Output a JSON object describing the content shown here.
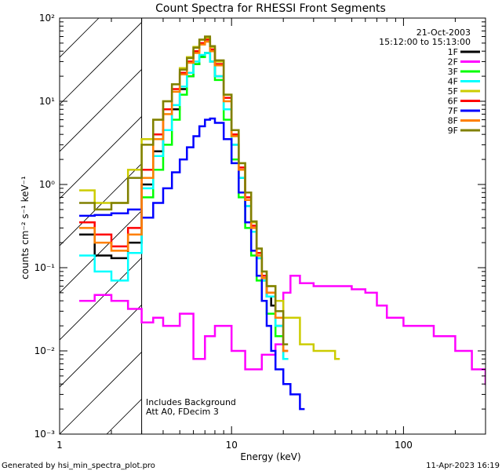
{
  "chart_data": {
    "type": "line",
    "title": "Count Spectra for RHESSI Front Segments",
    "xlabel": "Energy (keV)",
    "ylabel": "counts cm⁻² s⁻¹ keV⁻¹",
    "xscale": "log",
    "yscale": "log",
    "xlim": [
      1,
      300
    ],
    "ylim": [
      0.001,
      100
    ],
    "x_tick_labels": [
      "1",
      "10",
      "100"
    ],
    "y_tick_labels": [
      "10⁻³",
      "10⁻²",
      "10⁻¹",
      "10⁰",
      "10¹",
      "10²"
    ],
    "date": "21-Oct-2003",
    "time_range": "15:12:00 to 15:13:00",
    "excluded_region_below_keV": 3,
    "annotations": [
      "Includes Background",
      "Att A0, FDecim 3"
    ],
    "footer_left": "Generated by hsi_min_spectra_plot.pro",
    "footer_right": "11-Apr-2023 16:19",
    "series": [
      {
        "name": "1F",
        "color": "#000000",
        "x": [
          1.3,
          1.6,
          2.0,
          2.5,
          3.0,
          3.5,
          4.0,
          4.5,
          5.0,
          5.5,
          6.0,
          6.5,
          7.0,
          7.5,
          8.0,
          9.0,
          10.0,
          11.0,
          12.0,
          13.0,
          14.0,
          15.0,
          16.0,
          17.0,
          18.0,
          20.0
        ],
        "values": [
          0.25,
          0.14,
          0.13,
          0.2,
          1.0,
          2.5,
          4.5,
          8.0,
          14.0,
          20.0,
          28.0,
          35.0,
          38.0,
          30.0,
          20.0,
          8.0,
          3.0,
          1.2,
          0.55,
          0.27,
          0.13,
          0.07,
          0.045,
          0.035,
          0.02,
          0.008
        ]
      },
      {
        "name": "2F",
        "color": "#ff00ff",
        "x": [
          1.3,
          1.6,
          2.0,
          2.5,
          3.0,
          3.5,
          4.0,
          5.0,
          6.0,
          7.0,
          8.0,
          10.0,
          12.0,
          15.0,
          18.0,
          20.0,
          22.0,
          25.0,
          30.0,
          40.0,
          50.0,
          60.0,
          70.0,
          80.0,
          100.0,
          150.0,
          200.0,
          250.0,
          300.0
        ],
        "values": [
          0.04,
          0.047,
          0.04,
          0.032,
          0.022,
          0.025,
          0.02,
          0.028,
          0.008,
          0.015,
          0.02,
          0.01,
          0.006,
          0.009,
          0.012,
          0.05,
          0.08,
          0.065,
          0.06,
          0.06,
          0.055,
          0.05,
          0.035,
          0.025,
          0.02,
          0.015,
          0.01,
          0.006,
          0.004
        ]
      },
      {
        "name": "3F",
        "color": "#00ff00",
        "x": [
          3.0,
          3.5,
          4.0,
          4.5,
          5.0,
          5.5,
          6.0,
          6.5,
          7.0,
          7.5,
          8.0,
          9.0,
          10.0,
          11.0,
          12.0,
          13.0,
          14.0,
          15.0,
          16.0,
          18.0,
          20.0
        ],
        "values": [
          0.7,
          1.5,
          3.0,
          6.0,
          12.0,
          20.0,
          28.0,
          34.0,
          38.0,
          30.0,
          18.0,
          6.0,
          2.0,
          0.7,
          0.3,
          0.14,
          0.07,
          0.04,
          0.028,
          0.015,
          0.008
        ]
      },
      {
        "name": "4F",
        "color": "#00ffff",
        "x": [
          1.3,
          1.6,
          2.0,
          2.5,
          3.0,
          3.5,
          4.0,
          4.5,
          5.0,
          5.5,
          6.0,
          6.5,
          7.0,
          7.5,
          8.0,
          9.0,
          10.0,
          11.0,
          12.0,
          13.0,
          14.0,
          15.0,
          16.0,
          18.0,
          20.0
        ],
        "values": [
          0.14,
          0.09,
          0.07,
          0.15,
          0.9,
          2.2,
          4.5,
          9.0,
          15.0,
          22.0,
          30.0,
          36.0,
          38.0,
          30.0,
          20.0,
          8.0,
          3.0,
          1.2,
          0.55,
          0.27,
          0.13,
          0.07,
          0.045,
          0.02,
          0.008
        ]
      },
      {
        "name": "5F",
        "color": "#cccc00",
        "x": [
          1.3,
          1.6,
          2.0,
          2.5,
          3.0,
          3.5,
          4.0,
          4.5,
          5.0,
          5.5,
          6.0,
          6.5,
          7.0,
          7.5,
          8.0,
          9.0,
          10.0,
          11.0,
          12.0,
          13.0,
          14.0,
          15.0,
          16.0,
          18.0,
          20.0,
          25.0,
          30.0,
          40.0
        ],
        "values": [
          0.85,
          0.6,
          0.6,
          1.5,
          3.5,
          6.0,
          10.0,
          16.0,
          25.0,
          34.0,
          45.0,
          55.0,
          58.0,
          45.0,
          30.0,
          12.0,
          4.5,
          1.8,
          0.8,
          0.35,
          0.17,
          0.09,
          0.06,
          0.04,
          0.025,
          0.012,
          0.01,
          0.008
        ]
      },
      {
        "name": "6F",
        "color": "#ff0000",
        "x": [
          1.3,
          1.6,
          2.0,
          2.5,
          3.0,
          3.5,
          4.0,
          4.5,
          5.0,
          5.5,
          6.0,
          6.5,
          7.0,
          7.5,
          8.0,
          9.0,
          10.0,
          11.0,
          12.0,
          13.0,
          14.0,
          15.0,
          16.0,
          18.0,
          20.0
        ],
        "values": [
          0.35,
          0.25,
          0.18,
          0.3,
          1.5,
          4.0,
          8.0,
          14.0,
          22.0,
          30.0,
          40.0,
          50.0,
          55.0,
          42.0,
          28.0,
          11.0,
          4.0,
          1.6,
          0.7,
          0.32,
          0.15,
          0.08,
          0.05,
          0.025,
          0.01
        ]
      },
      {
        "name": "7F",
        "color": "#0000ff",
        "x": [
          1.3,
          1.6,
          2.0,
          2.5,
          3.0,
          3.5,
          4.0,
          4.5,
          5.0,
          5.5,
          6.0,
          6.5,
          7.0,
          7.5,
          8.0,
          9.0,
          10.0,
          11.0,
          12.0,
          13.0,
          14.0,
          15.0,
          16.0,
          17.0,
          18.0,
          20.0,
          22.0,
          25.0
        ],
        "values": [
          0.42,
          0.43,
          0.45,
          0.5,
          0.4,
          0.6,
          0.9,
          1.4,
          2.0,
          2.8,
          3.8,
          5.0,
          6.0,
          6.2,
          5.5,
          3.5,
          1.8,
          0.8,
          0.35,
          0.16,
          0.08,
          0.04,
          0.02,
          0.01,
          0.006,
          0.004,
          0.003,
          0.002
        ]
      },
      {
        "name": "8F",
        "color": "#ff8000",
        "x": [
          1.3,
          1.6,
          2.0,
          2.5,
          3.0,
          3.5,
          4.0,
          4.5,
          5.0,
          5.5,
          6.0,
          6.5,
          7.0,
          7.5,
          8.0,
          9.0,
          10.0,
          11.0,
          12.0,
          13.0,
          14.0,
          15.0,
          16.0,
          18.0,
          20.0
        ],
        "values": [
          0.3,
          0.2,
          0.16,
          0.25,
          1.2,
          3.5,
          7.0,
          13.0,
          21.0,
          29.0,
          38.0,
          48.0,
          52.0,
          40.0,
          27.0,
          10.0,
          3.8,
          1.5,
          0.65,
          0.3,
          0.14,
          0.075,
          0.05,
          0.025,
          0.01
        ]
      },
      {
        "name": "9F",
        "color": "#808000",
        "x": [
          1.3,
          1.6,
          2.0,
          2.5,
          3.0,
          3.5,
          4.0,
          4.5,
          5.0,
          5.5,
          6.0,
          6.5,
          7.0,
          7.5,
          8.0,
          9.0,
          10.0,
          11.0,
          12.0,
          13.0,
          14.0,
          15.0,
          16.0,
          18.0,
          20.0
        ],
        "values": [
          0.6,
          0.5,
          0.6,
          1.2,
          3.0,
          6.0,
          10.0,
          16.0,
          24.0,
          33.0,
          44.0,
          55.0,
          60.0,
          46.0,
          31.0,
          12.0,
          4.5,
          1.8,
          0.8,
          0.36,
          0.17,
          0.09,
          0.06,
          0.03,
          0.012
        ]
      }
    ]
  }
}
